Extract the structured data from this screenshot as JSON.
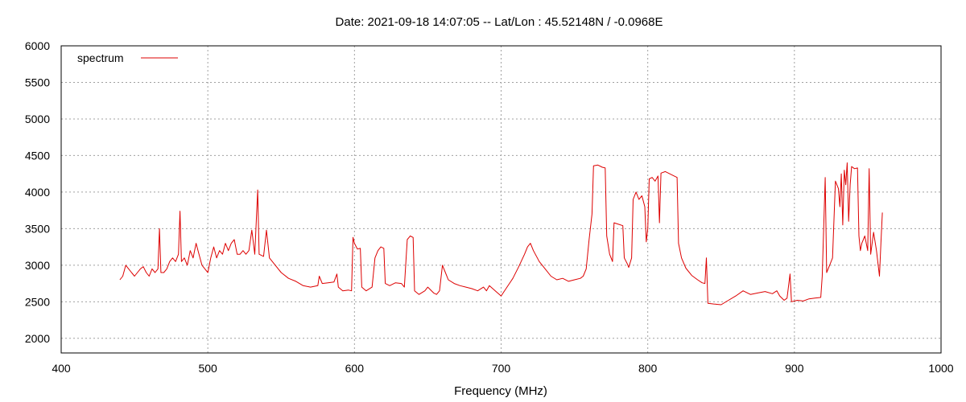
{
  "chart_data": {
    "type": "line",
    "title": "Date: 2021-09-18 14:07:05  --  Lat/Lon : 45.52148N / -0.0968E",
    "xlabel": "Frequency (MHz)",
    "ylabel": "",
    "xlim": [
      400,
      1000
    ],
    "ylim": [
      1800,
      6000
    ],
    "x_ticks": [
      400,
      500,
      600,
      700,
      800,
      900,
      1000
    ],
    "y_ticks": [
      2000,
      2500,
      3000,
      3500,
      4000,
      4500,
      5000,
      5500,
      6000
    ],
    "grid": true,
    "legend_position": "top-left",
    "series": [
      {
        "name": "spectrum",
        "color": "#dd0000",
        "points": [
          [
            440,
            2800
          ],
          [
            442,
            2850
          ],
          [
            444,
            3000
          ],
          [
            446,
            2950
          ],
          [
            448,
            2900
          ],
          [
            450,
            2850
          ],
          [
            452,
            2900
          ],
          [
            454,
            2950
          ],
          [
            456,
            2980
          ],
          [
            458,
            2900
          ],
          [
            460,
            2850
          ],
          [
            462,
            2950
          ],
          [
            464,
            2900
          ],
          [
            466,
            2950
          ],
          [
            467,
            3500
          ],
          [
            468,
            2900
          ],
          [
            470,
            2900
          ],
          [
            472,
            2950
          ],
          [
            474,
            3050
          ],
          [
            476,
            3100
          ],
          [
            478,
            3050
          ],
          [
            480,
            3150
          ],
          [
            481,
            3740
          ],
          [
            482,
            3050
          ],
          [
            484,
            3100
          ],
          [
            486,
            3000
          ],
          [
            488,
            3200
          ],
          [
            490,
            3100
          ],
          [
            492,
            3300
          ],
          [
            494,
            3150
          ],
          [
            496,
            3000
          ],
          [
            498,
            2950
          ],
          [
            500,
            2900
          ],
          [
            502,
            3100
          ],
          [
            504,
            3250
          ],
          [
            506,
            3100
          ],
          [
            508,
            3200
          ],
          [
            510,
            3150
          ],
          [
            512,
            3300
          ],
          [
            514,
            3200
          ],
          [
            516,
            3300
          ],
          [
            518,
            3350
          ],
          [
            520,
            3150
          ],
          [
            522,
            3150
          ],
          [
            524,
            3200
          ],
          [
            526,
            3150
          ],
          [
            528,
            3200
          ],
          [
            530,
            3480
          ],
          [
            532,
            3150
          ],
          [
            534,
            4030
          ],
          [
            535,
            3150
          ],
          [
            538,
            3120
          ],
          [
            540,
            3480
          ],
          [
            542,
            3100
          ],
          [
            546,
            3000
          ],
          [
            550,
            2900
          ],
          [
            555,
            2820
          ],
          [
            560,
            2780
          ],
          [
            565,
            2720
          ],
          [
            570,
            2700
          ],
          [
            575,
            2720
          ],
          [
            576,
            2850
          ],
          [
            578,
            2750
          ],
          [
            582,
            2760
          ],
          [
            586,
            2770
          ],
          [
            588,
            2880
          ],
          [
            589,
            2700
          ],
          [
            592,
            2650
          ],
          [
            596,
            2660
          ],
          [
            598,
            2650
          ],
          [
            599,
            3380
          ],
          [
            600,
            3300
          ],
          [
            602,
            3220
          ],
          [
            604,
            3230
          ],
          [
            605,
            2700
          ],
          [
            608,
            2650
          ],
          [
            612,
            2700
          ],
          [
            614,
            3100
          ],
          [
            616,
            3200
          ],
          [
            618,
            3250
          ],
          [
            620,
            3230
          ],
          [
            621,
            2750
          ],
          [
            624,
            2720
          ],
          [
            628,
            2760
          ],
          [
            632,
            2750
          ],
          [
            634,
            2700
          ],
          [
            636,
            3350
          ],
          [
            638,
            3400
          ],
          [
            640,
            3380
          ],
          [
            641,
            2650
          ],
          [
            644,
            2600
          ],
          [
            648,
            2650
          ],
          [
            650,
            2700
          ],
          [
            654,
            2620
          ],
          [
            656,
            2600
          ],
          [
            658,
            2650
          ],
          [
            660,
            3000
          ],
          [
            662,
            2900
          ],
          [
            664,
            2800
          ],
          [
            668,
            2750
          ],
          [
            672,
            2720
          ],
          [
            676,
            2700
          ],
          [
            680,
            2680
          ],
          [
            684,
            2650
          ],
          [
            688,
            2700
          ],
          [
            690,
            2650
          ],
          [
            692,
            2720
          ],
          [
            696,
            2650
          ],
          [
            700,
            2580
          ],
          [
            704,
            2700
          ],
          [
            708,
            2820
          ],
          [
            712,
            2980
          ],
          [
            716,
            3150
          ],
          [
            718,
            3250
          ],
          [
            720,
            3300
          ],
          [
            722,
            3200
          ],
          [
            726,
            3050
          ],
          [
            730,
            2950
          ],
          [
            734,
            2850
          ],
          [
            738,
            2800
          ],
          [
            742,
            2820
          ],
          [
            746,
            2780
          ],
          [
            750,
            2800
          ],
          [
            754,
            2820
          ],
          [
            756,
            2850
          ],
          [
            758,
            2950
          ],
          [
            760,
            3350
          ],
          [
            762,
            3700
          ],
          [
            763,
            4360
          ],
          [
            766,
            4370
          ],
          [
            769,
            4340
          ],
          [
            771,
            4330
          ],
          [
            772,
            3400
          ],
          [
            774,
            3150
          ],
          [
            776,
            3050
          ],
          [
            777,
            3580
          ],
          [
            780,
            3560
          ],
          [
            783,
            3540
          ],
          [
            784,
            3100
          ],
          [
            786,
            3020
          ],
          [
            787,
            2970
          ],
          [
            789,
            3100
          ],
          [
            790,
            3900
          ],
          [
            792,
            4000
          ],
          [
            794,
            3900
          ],
          [
            796,
            3950
          ],
          [
            798,
            3800
          ],
          [
            799,
            3320
          ],
          [
            800,
            3500
          ],
          [
            801,
            4180
          ],
          [
            803,
            4200
          ],
          [
            805,
            4150
          ],
          [
            807,
            4220
          ],
          [
            808,
            3580
          ],
          [
            809,
            4260
          ],
          [
            812,
            4280
          ],
          [
            815,
            4250
          ],
          [
            818,
            4220
          ],
          [
            820,
            4200
          ],
          [
            821,
            3300
          ],
          [
            823,
            3100
          ],
          [
            826,
            2960
          ],
          [
            830,
            2860
          ],
          [
            834,
            2800
          ],
          [
            837,
            2760
          ],
          [
            839,
            2750
          ],
          [
            840,
            3100
          ],
          [
            841,
            2480
          ],
          [
            845,
            2470
          ],
          [
            850,
            2460
          ],
          [
            855,
            2520
          ],
          [
            860,
            2580
          ],
          [
            865,
            2650
          ],
          [
            870,
            2600
          ],
          [
            875,
            2620
          ],
          [
            880,
            2640
          ],
          [
            885,
            2610
          ],
          [
            888,
            2650
          ],
          [
            890,
            2580
          ],
          [
            893,
            2520
          ],
          [
            895,
            2550
          ],
          [
            897,
            2880
          ],
          [
            898,
            2500
          ],
          [
            902,
            2520
          ],
          [
            906,
            2510
          ],
          [
            910,
            2540
          ],
          [
            914,
            2550
          ],
          [
            918,
            2560
          ],
          [
            919,
            2850
          ],
          [
            921,
            4200
          ],
          [
            922,
            2900
          ],
          [
            924,
            3000
          ],
          [
            926,
            3100
          ],
          [
            928,
            4150
          ],
          [
            930,
            4050
          ],
          [
            931,
            3800
          ],
          [
            932,
            4250
          ],
          [
            933,
            3550
          ],
          [
            934,
            4300
          ],
          [
            935,
            4100
          ],
          [
            936,
            4400
          ],
          [
            937,
            3600
          ],
          [
            938,
            4100
          ],
          [
            939,
            4350
          ],
          [
            941,
            4320
          ],
          [
            943,
            4330
          ],
          [
            944,
            3400
          ],
          [
            945,
            3200
          ],
          [
            946,
            3300
          ],
          [
            948,
            3400
          ],
          [
            950,
            3200
          ],
          [
            951,
            4320
          ],
          [
            952,
            3150
          ],
          [
            954,
            3450
          ],
          [
            956,
            3200
          ],
          [
            958,
            2850
          ],
          [
            959,
            3300
          ],
          [
            960,
            3720
          ]
        ]
      }
    ]
  }
}
